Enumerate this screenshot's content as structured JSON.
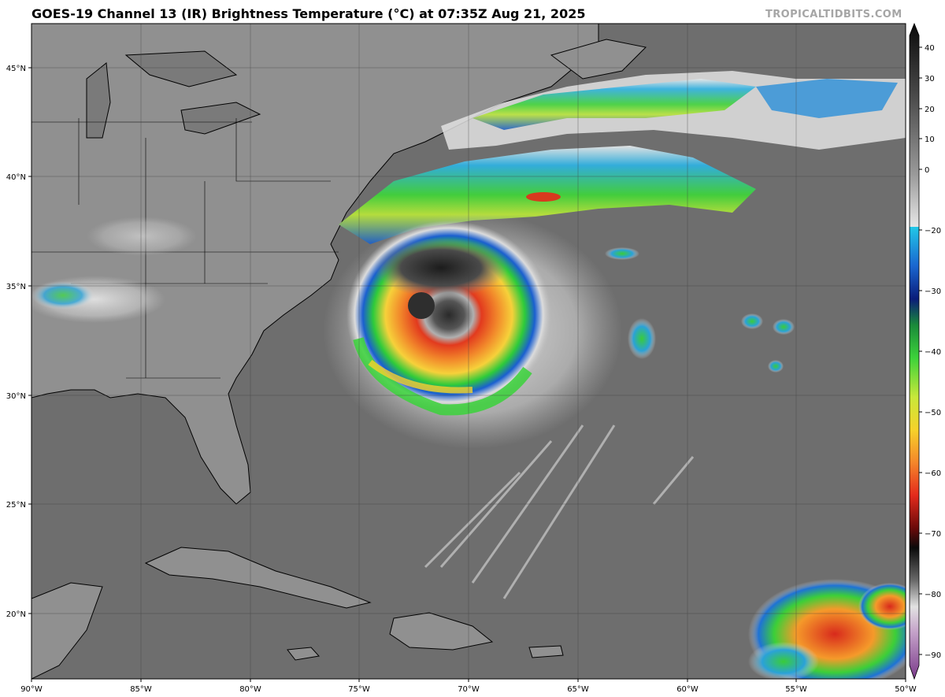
{
  "title": "GOES-19 Channel 13 (IR) Brightness Temperature (°C) at 07:35Z Aug 21, 2025",
  "credit": "TROPICALTIDBITS.COM",
  "lon_ticks": [
    "90°W",
    "85°W",
    "80°W",
    "75°W",
    "70°W",
    "65°W",
    "60°W",
    "55°W",
    "50°W"
  ],
  "lat_ticks": [
    "45°N",
    "40°N",
    "35°N",
    "30°N",
    "25°N",
    "20°N"
  ],
  "colorbar": {
    "ticks": [
      "40",
      "30",
      "20",
      "10",
      "0",
      "−20",
      "−30",
      "−40",
      "−50",
      "−60",
      "−70",
      "−80",
      "−90"
    ]
  },
  "colors": {
    "background": "#6e6e6e",
    "land": "#909090",
    "coastline": "#000000",
    "grid": "#4a4a4a"
  },
  "map": {
    "extent": {
      "west_lon": -90,
      "east_lon": -50,
      "south_lat": 17,
      "north_lat": 47
    }
  }
}
